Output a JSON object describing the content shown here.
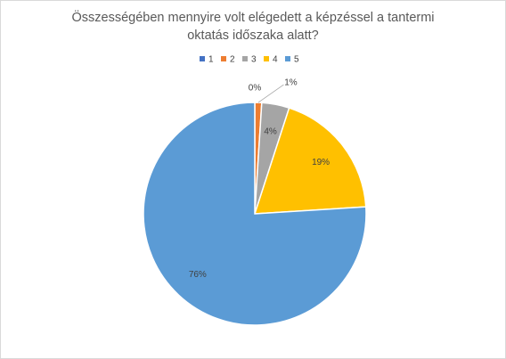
{
  "chart_data": {
    "type": "pie",
    "title": "Összességében mennyire volt elégedett a képzéssel a tantermi oktatás időszaka alatt?",
    "categories": [
      "1",
      "2",
      "3",
      "4",
      "5"
    ],
    "values": [
      0,
      1,
      4,
      19,
      76
    ],
    "value_labels": [
      "0%",
      "1%",
      "4%",
      "19%",
      "76%"
    ],
    "colors": [
      "#4472c4",
      "#ed7d31",
      "#a5a5a5",
      "#ffc000",
      "#5b9bd5"
    ],
    "legend": "top"
  }
}
